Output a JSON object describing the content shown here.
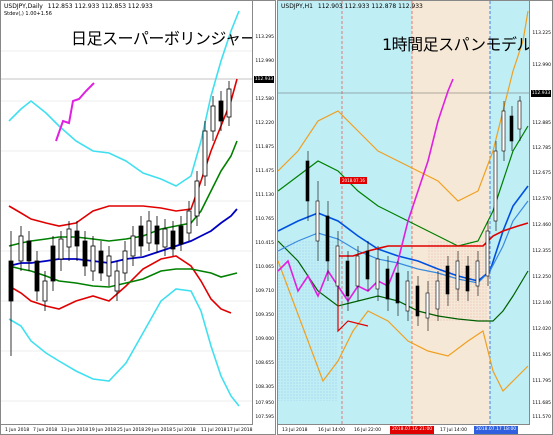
{
  "left_chart": {
    "symbol": "USDJPY,Daily",
    "ohlc": "112.853 112.933 112.853 112.933",
    "indicator_line": "Stdev(,) 1.00+1.56",
    "overlay_title": "日足スーパーボリンジャー",
    "y_labels": [
      "113.295",
      "112.990",
      "112.580",
      "112.220",
      "111.875",
      "111.475",
      "111.130",
      "110.765",
      "110.415",
      "110.065",
      "109.710",
      "109.350",
      "109.000",
      "108.655",
      "108.305",
      "107.950",
      "107.595"
    ],
    "price_tag": "112.933",
    "x_labels": [
      "1 Jun 2018",
      "7 Jun 2018",
      "13 Jun 2018",
      "19 Jun 2018",
      "25 Jun 2018",
      "29 Jun 2018",
      "5 Jul 2018",
      "11 Jul 2018",
      "17 Jul 2018"
    ],
    "colors": {
      "cyan": "#40e0f0",
      "magenta": "#e020e0",
      "red": "#e00000",
      "green": "#008000",
      "blue": "#0000c0",
      "candle": "#000000"
    }
  },
  "right_chart": {
    "symbol": "USDJPY,H1",
    "ohlc": "112.903 112.933 112.878 112.933",
    "overlay_title": "1時間足スパンモデル",
    "y_labels": [
      "113.225",
      "112.990",
      "112.885",
      "112.785",
      "112.675",
      "112.570",
      "112.460",
      "112.355",
      "112.250",
      "112.140",
      "112.020",
      "111.905",
      "111.795",
      "111.685",
      "111.570"
    ],
    "price_tag": "112.933",
    "x_labels": [
      "13 Jul 2018",
      "16 Jul 14:00",
      "16 Jul 22:00",
      "17 Jul 06:00",
      "17 Jul 14:00",
      "18 Jul 03:00"
    ],
    "markers": [
      "2018.07.16",
      "2018.07.16 21:00",
      "2018.07.17 18:00"
    ],
    "colors": {
      "cyan_bg": "#bfeef5",
      "beige_bg": "#f6e8d6",
      "orange": "#f0a020",
      "magenta": "#e020e0",
      "red": "#e00000",
      "green": "#008000",
      "blue": "#0050e0",
      "darkgreen": "#006000"
    }
  }
}
